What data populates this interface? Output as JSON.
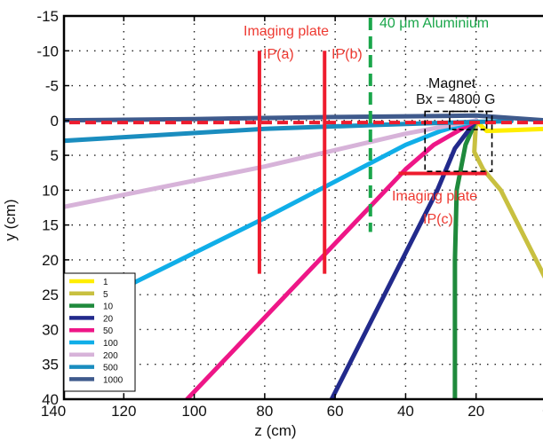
{
  "chart_data": {
    "type": "line",
    "xlabel": "z (cm)",
    "ylabel": "y (cm)",
    "xlim": [
      140,
      0
    ],
    "ylim": [
      -15,
      40
    ],
    "grid": true,
    "x_ticks": [
      140,
      120,
      100,
      80,
      60,
      40,
      20,
      0
    ],
    "x_tick_labels": [
      "140",
      "120",
      "100",
      "80",
      "60",
      "40",
      "20",
      "0"
    ],
    "y_ticks": [
      -15,
      -10,
      -5,
      0,
      5,
      10,
      15,
      20,
      25,
      30,
      35,
      40
    ],
    "y_tick_labels": [
      "-15",
      "-10",
      "-5",
      "0",
      "5",
      "10",
      "15",
      "20",
      "25",
      "30",
      "35",
      "40"
    ],
    "legend_position": "bottom-left",
    "series": [
      {
        "name": "1",
        "color": "#ffee00",
        "points": [
          [
            0,
            1.2
          ],
          [
            10,
            1.4
          ],
          [
            17,
            1.5
          ],
          [
            18.5,
            0.8
          ],
          [
            20,
            0
          ]
        ]
      },
      {
        "name": "5",
        "color": "#c8c040",
        "points": [
          [
            20,
            0
          ],
          [
            20.5,
            4.5
          ],
          [
            18,
            7
          ],
          [
            13,
            10
          ],
          [
            0,
            23
          ]
        ]
      },
      {
        "name": "10",
        "color": "#1f8a3c",
        "points": [
          [
            20,
            0
          ],
          [
            23,
            3.5
          ],
          [
            25.5,
            10
          ],
          [
            26,
            20
          ],
          [
            26,
            40
          ]
        ]
      },
      {
        "name": "20",
        "color": "#222a8c",
        "points": [
          [
            20,
            0
          ],
          [
            26,
            4
          ],
          [
            31,
            10
          ],
          [
            61,
            40
          ]
        ]
      },
      {
        "name": "50",
        "color": "#ee1687",
        "points": [
          [
            20,
            0
          ],
          [
            32,
            3.5
          ],
          [
            40,
            7
          ],
          [
            102,
            40
          ]
        ]
      },
      {
        "name": "100",
        "color": "#10aee8",
        "points": [
          [
            20,
            0
          ],
          [
            30,
            1.5
          ],
          [
            40,
            3.5
          ],
          [
            80,
            14
          ],
          [
            140,
            29
          ]
        ]
      },
      {
        "name": "200",
        "color": "#d7b3d9",
        "points": [
          [
            20,
            0
          ],
          [
            40,
            1.9
          ],
          [
            80,
            6.6
          ],
          [
            140,
            12.7
          ]
        ]
      },
      {
        "name": "500",
        "color": "#1a8dbf",
        "points": [
          [
            10,
            0.1
          ],
          [
            20,
            0.2
          ],
          [
            40,
            0.5
          ],
          [
            80,
            1.2
          ],
          [
            140,
            3
          ]
        ]
      },
      {
        "name": "1000",
        "color": "#3f5a8c",
        "points": [
          [
            0,
            0
          ],
          [
            20,
            -0.7
          ],
          [
            60,
            -0.5
          ],
          [
            100,
            -0.2
          ],
          [
            140,
            0
          ]
        ]
      }
    ],
    "red_dashed_line": {
      "color": "#ee1c2e",
      "points": [
        [
          0,
          0.3
        ],
        [
          140,
          0.3
        ]
      ]
    },
    "imaging_plates": {
      "ipa": {
        "z": 81.5,
        "y_range": [
          -10,
          22
        ]
      },
      "ipb": {
        "z": 63,
        "y_range": [
          -10,
          22
        ]
      },
      "ipc": {
        "z_range": [
          17,
          42
        ],
        "y": 7.6
      }
    },
    "aluminium_line": {
      "z": 50,
      "y_range": [
        -15,
        16
      ],
      "color": "#1aa64a"
    },
    "magnet_box": {
      "z_range": [
        15.5,
        34.5
      ],
      "y_range": [
        -1.3,
        7.3
      ]
    },
    "magnet_inner_box": {
      "z_range": [
        17,
        27.5
      ],
      "y_range": [
        -1.3,
        1.3
      ]
    },
    "annotations": {
      "imaging_plate_a_line1": "Imaging plate",
      "imaging_plate_a_line2": "IP(a)",
      "imaging_plate_b": "IP(b)",
      "aluminium": "40 μm Aluminium",
      "magnet_line1": "Magnet",
      "magnet_line2": "Bx = 4800 G",
      "imaging_plate_c_line1": "Imaging plate",
      "imaging_plate_c_line2": "IP(c)"
    },
    "colors": {
      "imaging_plate": "#ee1c2e",
      "aluminium": "#1aa64a",
      "annotation_red": "#ee3a32",
      "annotation_green": "#1aa64a"
    }
  }
}
